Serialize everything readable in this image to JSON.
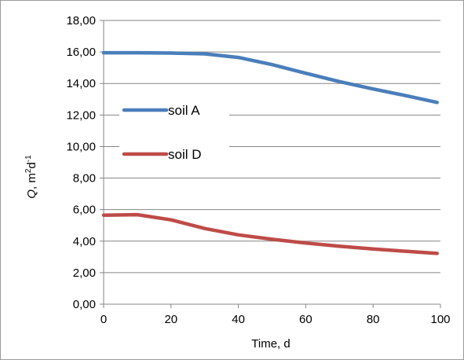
{
  "chart_data": {
    "type": "line",
    "title": "",
    "xlabel": "Time, d",
    "ylabel": {
      "italic": "Q",
      "rest": ", m",
      "sup1": "2",
      "mid": "d",
      "sup2": "-1"
    },
    "xlim": [
      0,
      100
    ],
    "ylim": [
      0,
      18
    ],
    "xticks": [
      "0",
      "20",
      "40",
      "60",
      "80",
      "100"
    ],
    "yticks": [
      "0,00",
      "2,00",
      "4,00",
      "6,00",
      "8,00",
      "10,00",
      "12,00",
      "14,00",
      "16,00",
      "18,00"
    ],
    "grid": "horizontal",
    "legend_position": "left-inside",
    "x": [
      0,
      10,
      20,
      30,
      40,
      50,
      60,
      70,
      80,
      90,
      99
    ],
    "series": [
      {
        "name": "soil A",
        "color": "#4a7ebb",
        "values": [
          15.95,
          15.95,
          15.93,
          15.88,
          15.65,
          15.2,
          14.65,
          14.12,
          13.65,
          13.22,
          12.8
        ]
      },
      {
        "name": "soil D",
        "color": "#be4b48",
        "values": [
          5.65,
          5.68,
          5.35,
          4.8,
          4.4,
          4.12,
          3.88,
          3.68,
          3.5,
          3.35,
          3.22
        ]
      }
    ]
  }
}
